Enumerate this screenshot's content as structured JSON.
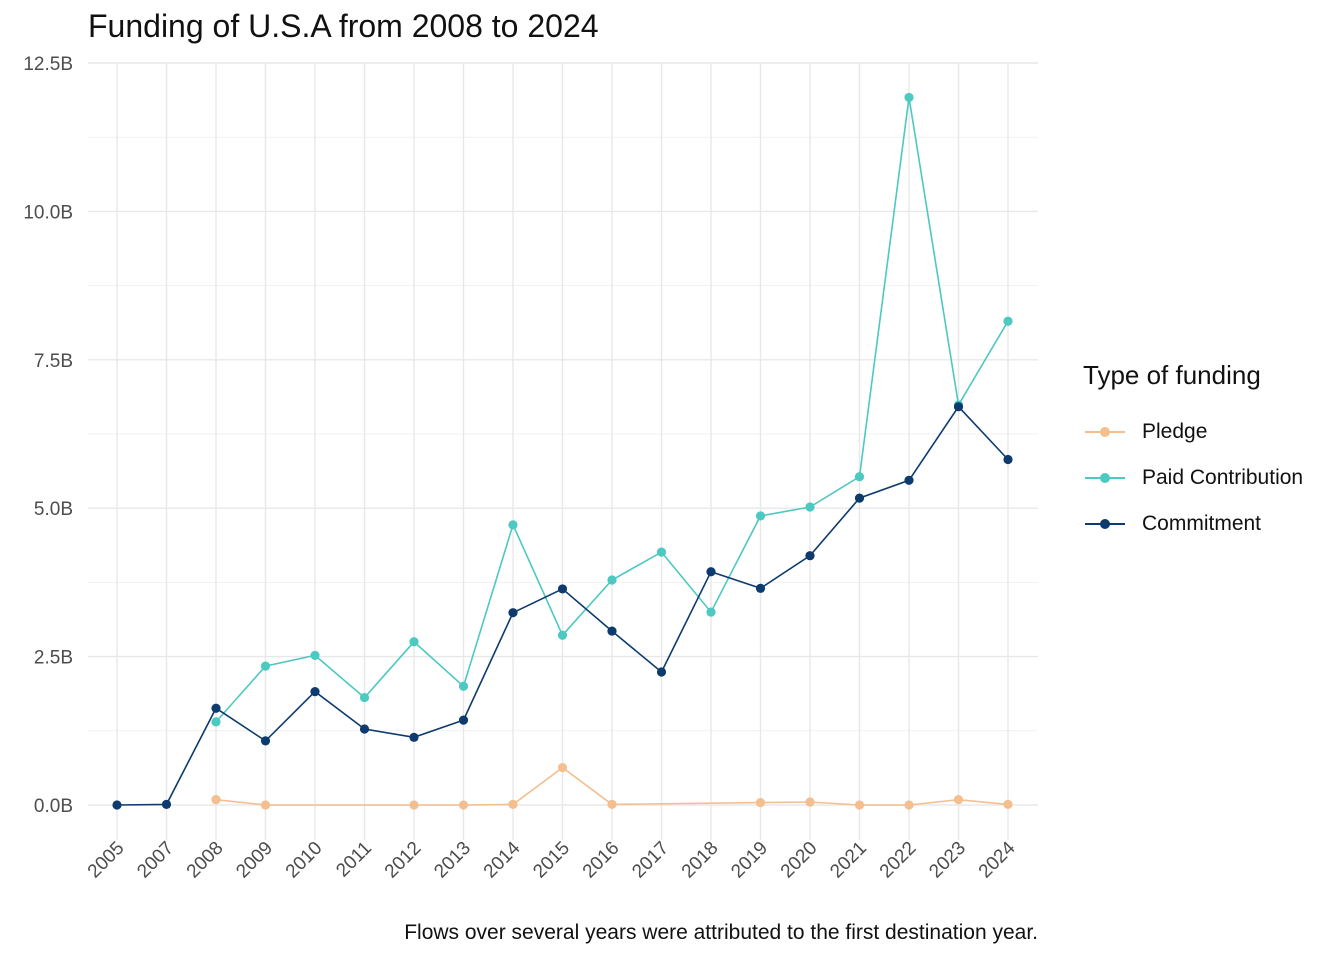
{
  "chart_data": {
    "type": "line",
    "title": "Funding of U.S.A from 2008 to 2024",
    "caption": "Flows over several years were attributed to the first destination year.",
    "xlabel": "",
    "ylabel": "",
    "x": [
      "2005",
      "2007",
      "2008",
      "2009",
      "2010",
      "2011",
      "2012",
      "2013",
      "2014",
      "2015",
      "2016",
      "2017",
      "2018",
      "2019",
      "2020",
      "2021",
      "2022",
      "2023",
      "2024"
    ],
    "ylim": [
      0,
      12.5
    ],
    "y_unit": "B",
    "y_ticks": [
      {
        "value": 0,
        "label": "0.0B"
      },
      {
        "value": 2.5,
        "label": "2.5B"
      },
      {
        "value": 5,
        "label": "5.0B"
      },
      {
        "value": 7.5,
        "label": "7.5B"
      },
      {
        "value": 10,
        "label": "10.0B"
      },
      {
        "value": 12.5,
        "label": "12.5B"
      }
    ],
    "grid": true,
    "legend": {
      "title": "Type of funding",
      "position": "right"
    },
    "series": [
      {
        "name": "Pledge",
        "color": "#f5be8f",
        "values": [
          null,
          null,
          0.09,
          0.0,
          null,
          null,
          0.0,
          0.0,
          0.01,
          0.63,
          0.01,
          null,
          null,
          0.04,
          0.05,
          0.0,
          0.0,
          0.09,
          0.01
        ]
      },
      {
        "name": "Paid Contribution",
        "color": "#4cc9c0",
        "values": [
          null,
          null,
          1.4,
          2.34,
          2.52,
          1.81,
          2.75,
          2.0,
          4.72,
          2.86,
          3.79,
          4.26,
          3.25,
          4.87,
          5.02,
          5.53,
          11.92,
          6.74,
          8.15
        ]
      },
      {
        "name": "Commitment",
        "color": "#0d3b6e",
        "values": [
          0.0,
          0.01,
          1.63,
          1.08,
          1.91,
          1.28,
          1.14,
          1.43,
          3.24,
          3.64,
          2.93,
          2.24,
          3.93,
          3.65,
          4.2,
          5.17,
          5.47,
          6.71,
          5.82
        ]
      }
    ]
  }
}
